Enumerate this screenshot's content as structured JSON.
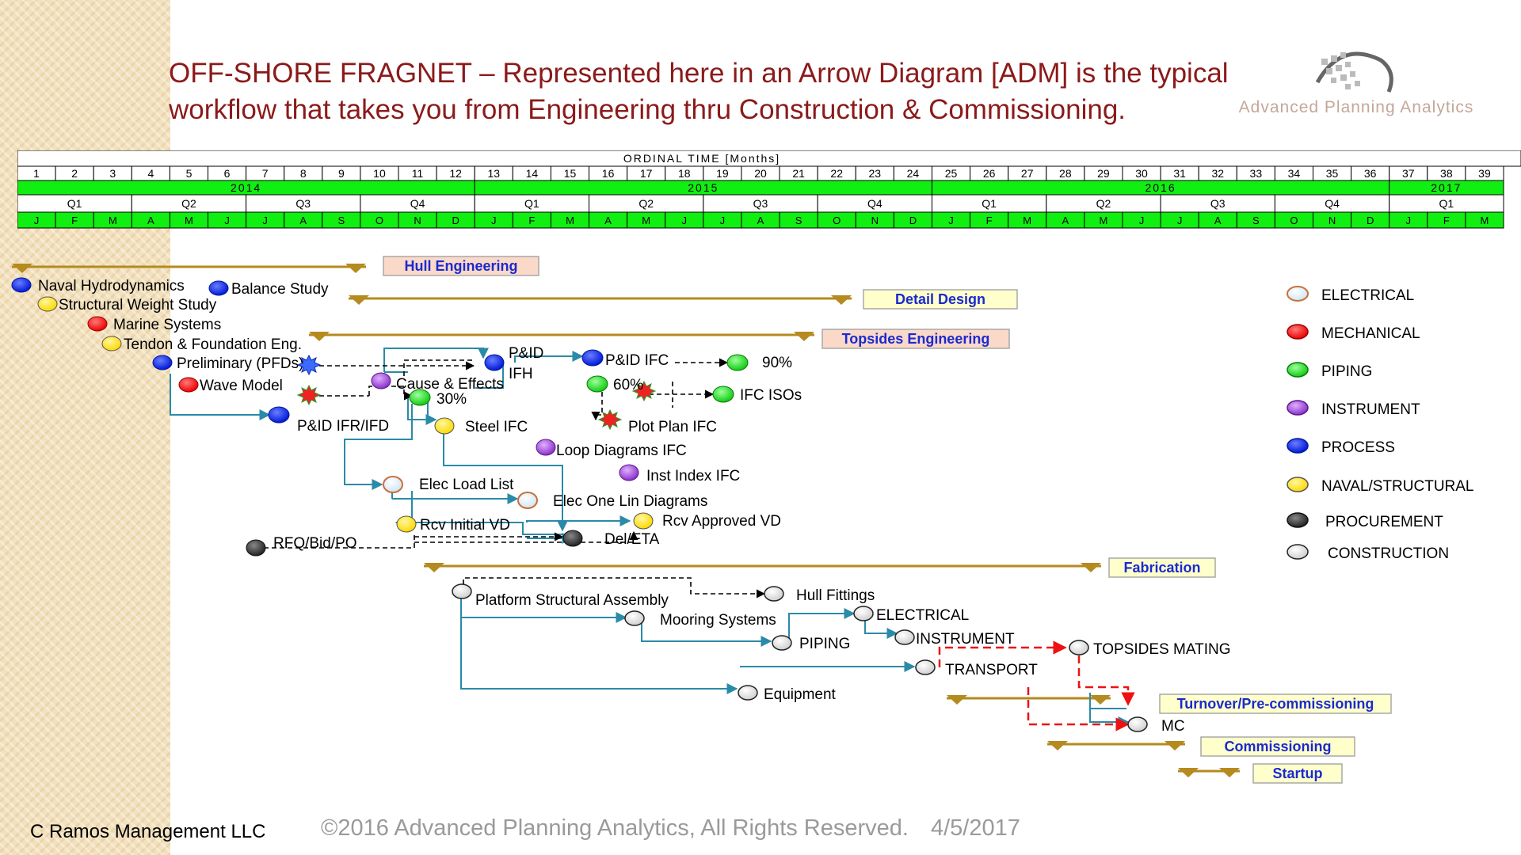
{
  "title": {
    "line1": "OFF-SHORE FRAGNET – Represented here in an Arrow Diagram [ADM] is the typical",
    "line2": "workflow that takes you from Engineering thru Construction & Commissioning."
  },
  "logo": {
    "text": "Advanced Planning Analytics"
  },
  "timeline": {
    "header": "ORDINAL   TIME   [Months]",
    "months": [
      "1",
      "2",
      "3",
      "4",
      "5",
      "6",
      "7",
      "8",
      "9",
      "10",
      "11",
      "12",
      "13",
      "14",
      "15",
      "16",
      "17",
      "18",
      "19",
      "20",
      "21",
      "22",
      "23",
      "24",
      "25",
      "26",
      "27",
      "28",
      "29",
      "30",
      "31",
      "32",
      "33",
      "34",
      "35",
      "36",
      "37",
      "38",
      "39"
    ],
    "years": [
      {
        "label": "2014",
        "start": 1,
        "span": 12
      },
      {
        "label": "2015",
        "start": 13,
        "span": 12
      },
      {
        "label": "2016",
        "start": 25,
        "span": 12
      },
      {
        "label": "2017",
        "start": 37,
        "span": 3
      }
    ],
    "quarters": [
      {
        "label": "Q1",
        "start": 1,
        "span": 3
      },
      {
        "label": "Q2",
        "start": 4,
        "span": 3
      },
      {
        "label": "Q3",
        "start": 7,
        "span": 3
      },
      {
        "label": "Q4",
        "start": 10,
        "span": 3
      },
      {
        "label": "Q1",
        "start": 13,
        "span": 3
      },
      {
        "label": "Q2",
        "start": 16,
        "span": 3
      },
      {
        "label": "Q3",
        "start": 19,
        "span": 3
      },
      {
        "label": "Q4",
        "start": 22,
        "span": 3
      },
      {
        "label": "Q1",
        "start": 25,
        "span": 3
      },
      {
        "label": "Q2",
        "start": 28,
        "span": 3
      },
      {
        "label": "Q3",
        "start": 31,
        "span": 3
      },
      {
        "label": "Q4",
        "start": 34,
        "span": 3
      },
      {
        "label": "Q1",
        "start": 37,
        "span": 3
      }
    ],
    "month_letters": [
      "J",
      "F",
      "M",
      "A",
      "M",
      "J",
      "J",
      "A",
      "S",
      "O",
      "N",
      "D",
      "J",
      "F",
      "M",
      "A",
      "M",
      "J",
      "J",
      "A",
      "S",
      "O",
      "N",
      "D",
      "J",
      "F",
      "M",
      "A",
      "M",
      "J",
      "J",
      "A",
      "S",
      "O",
      "N",
      "D",
      "J",
      "F",
      "M"
    ]
  },
  "phases": [
    {
      "label": "Hull Engineering",
      "start": 0,
      "end": 9.0,
      "style": "pink",
      "bar_row": 0
    },
    {
      "label": "Detail Design",
      "start": 8.5,
      "end": 21.5,
      "style": "yellow",
      "bar_row": 1
    },
    {
      "label": "Topsides Engineering",
      "start": 7.5,
      "end": 20.5,
      "style": "pink",
      "bar_row": 2
    },
    {
      "label": "Fabrication",
      "start": 10.5,
      "end": 28.0,
      "style": "yellow",
      "bar_row": 3
    },
    {
      "label": "Turnover/Pre-commissioning",
      "start": 24.0,
      "end": 29.0,
      "style": "yellow",
      "bar_row": 4
    },
    {
      "label": "Commissioning",
      "start": 26.5,
      "end": 30.0,
      "style": "yellow",
      "bar_row": 5
    },
    {
      "label": "Startup",
      "start": 29.5,
      "end": 31.0,
      "style": "yellow",
      "bar_row": 6
    }
  ],
  "legend": [
    {
      "label": "ELECTRICAL",
      "color": "#ffffff",
      "ring": "#c8703a",
      "type": "electrical"
    },
    {
      "label": "MECHANICAL",
      "color": "#ff1a1a",
      "type": "mechanical"
    },
    {
      "label": "PIPING",
      "color": "#22dd22",
      "type": "piping"
    },
    {
      "label": "INSTRUMENT",
      "color": "#a050d0",
      "type": "instrument"
    },
    {
      "label": "PROCESS",
      "color": "#0022ee",
      "type": "process"
    },
    {
      "label": "NAVAL/STRUCTURAL",
      "color": "#ffe21a",
      "type": "naval"
    },
    {
      "label": "PROCUREMENT",
      "color": "#333333",
      "type": "procurement"
    },
    {
      "label": "CONSTRUCTION",
      "color": "#dddddd",
      "type": "construction"
    }
  ],
  "nodes": {
    "naval_hydro": "Naval Hydrodynamics",
    "balance_study": "Balance Study",
    "structural_weight": "Structural Weight Study",
    "marine_systems": "Marine Systems",
    "tendon": "Tendon & Foundation Eng.",
    "preliminary": "Preliminary (PFDs)",
    "wave_model": "Wave Model",
    "pid_ifr": "P&ID IFR/IFD",
    "cause_effects": "Cause & Effects",
    "pct30": "30%",
    "pid_ifh_1": "P&ID",
    "pid_ifh_2": "IFH",
    "pid_ifc": "P&ID IFC",
    "pct90": "90%",
    "pct60": "60%",
    "ifc_isos": "IFC ISOs",
    "plot_plan": "Plot Plan IFC",
    "steel_ifc": "Steel IFC",
    "loop_diagrams": "Loop Diagrams IFC",
    "inst_index": "Inst Index IFC",
    "elec_load": "Elec Load List",
    "elec_one_line": "Elec One Lin Diagrams",
    "rcv_initial": "Rcv Initial VD",
    "rcv_approved": "Rcv Approved VD",
    "rfq": "RFQ/Bid/PO",
    "del_eta": "Del/ETA",
    "platform_struct": "Platform Structural Assembly",
    "hull_fittings": "Hull Fittings",
    "mooring": "Mooring Systems",
    "electrical": "ELECTRICAL",
    "instrument": "INSTRUMENT",
    "piping": "PIPING",
    "topsides_mating": "TOPSIDES MATING",
    "transport": "TRANSPORT",
    "equipment": "Equipment",
    "mc": "MC"
  },
  "footer": {
    "company": "C Ramos Management LLC",
    "copyright": "©2016 Advanced Planning Analytics, All Rights Reserved.",
    "date": "4/5/2017"
  }
}
